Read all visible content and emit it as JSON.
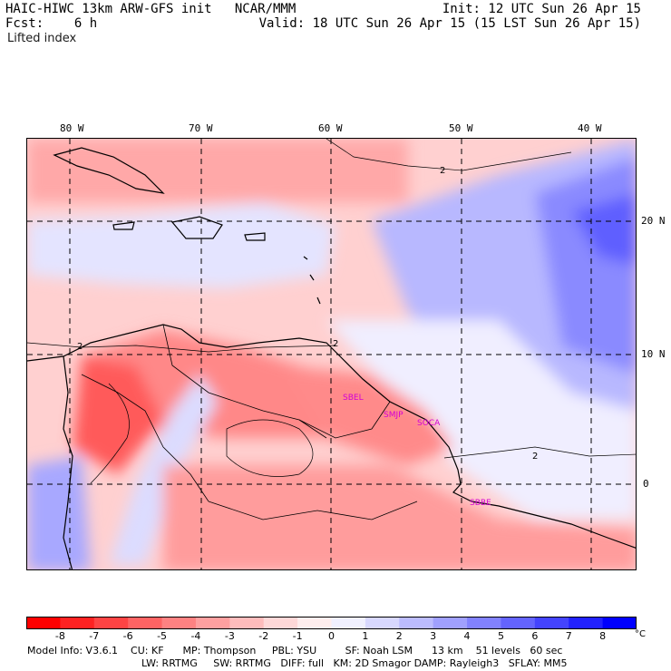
{
  "header": {
    "title": "HAIC-HIWC 13km ARW-GFS init   NCAR/MMM",
    "init": "Init: 12 UTC Sun 26 Apr 15",
    "fcst": "Fcst:    6 h",
    "valid": "Valid: 18 UTC Sun 26 Apr 15 (15 LST Sun 26 Apr 15)",
    "field": "Lifted index"
  },
  "map": {
    "longitude_labels": [
      "80 W",
      "70 W",
      "60 W",
      "50 W",
      "40 W"
    ],
    "latitude_labels": [
      "20 N",
      "10 N",
      "0"
    ],
    "contour_label": "2",
    "stations": [
      "SBEL",
      "SMJP",
      "SOCA",
      "SBBE"
    ],
    "colors": {
      "station": "#d400d4",
      "grid": "#000000",
      "coast": "#000000"
    }
  },
  "colorbar": {
    "labels": [
      "-8",
      "-7",
      "-6",
      "-5",
      "-4",
      "-3",
      "-2",
      "-1",
      "0",
      "1",
      "2",
      "3",
      "4",
      "5",
      "6",
      "7",
      "8"
    ],
    "unit": "°C",
    "colors": [
      "#ff0000",
      "#ff2222",
      "#ff4444",
      "#ff6464",
      "#ff8282",
      "#ffa0a0",
      "#ffbcbc",
      "#ffd8d8",
      "#ffeeee",
      "#f0f0ff",
      "#d8d8ff",
      "#bcbcff",
      "#a0a0ff",
      "#8282ff",
      "#6464ff",
      "#4444ff",
      "#2222ff",
      "#0000ff"
    ]
  },
  "model_info": {
    "line1": "Model Info: V3.6.1    CU: KF      MP: Thompson     PBL: YSU         SF: Noah LSM      13 km    51 levels   60 sec",
    "line2": "LW: RRTMG     SW: RRTMG   DIFF: full   KM: 2D Smagor DAMP: Rayleigh3   SFLAY: MM5"
  }
}
